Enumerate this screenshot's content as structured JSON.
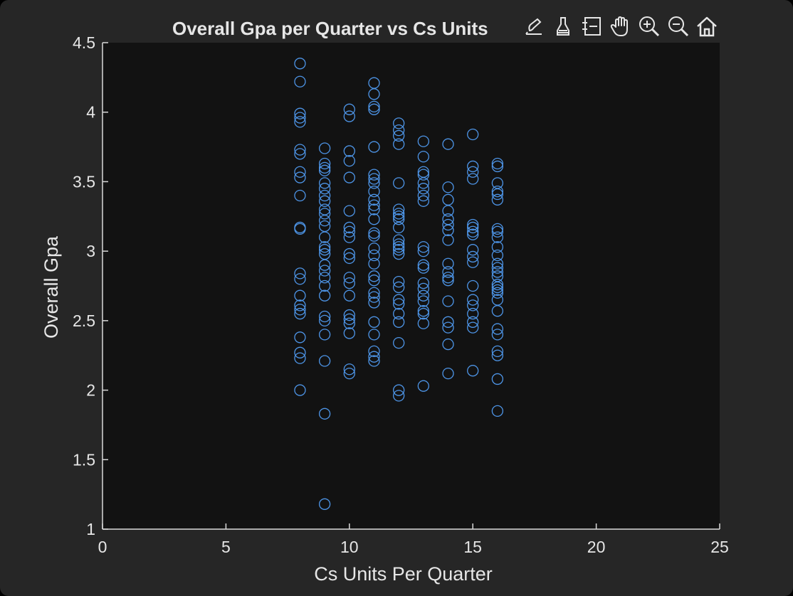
{
  "window": {
    "background": "#262626",
    "axes_background": "#121212",
    "axis_color": "#d9d9d9",
    "text_color": "#e6e6e6",
    "marker_color": "#4d94e6"
  },
  "toolbar": {
    "icons": [
      "brush-select-icon",
      "data-tips-icon",
      "legend-icon",
      "pan-icon",
      "zoom-in-icon",
      "zoom-out-icon",
      "home-icon"
    ]
  },
  "chart_data": {
    "type": "scatter",
    "title": "Overall Gpa per Quarter vs Cs Units",
    "xlabel": "Cs Units Per Quarter",
    "ylabel": "Overall Gpa",
    "xlim": [
      0,
      25
    ],
    "ylim": [
      1,
      4.5
    ],
    "xticks": [
      "0",
      "5",
      "10",
      "15",
      "20",
      "25"
    ],
    "yticks": [
      "1",
      "1.5",
      "2",
      "2.5",
      "3",
      "3.5",
      "4",
      "4.5"
    ],
    "marker": "open-circle",
    "grid": false,
    "series": [
      {
        "points": [
          [
            8,
            4.35
          ],
          [
            8,
            4.22
          ],
          [
            8,
            3.99
          ],
          [
            8,
            3.96
          ],
          [
            8,
            3.93
          ],
          [
            8,
            3.73
          ],
          [
            8,
            3.7
          ],
          [
            8,
            3.57
          ],
          [
            8,
            3.53
          ],
          [
            8,
            3.4
          ],
          [
            8,
            3.17
          ],
          [
            8,
            3.16
          ],
          [
            8,
            2.84
          ],
          [
            8,
            2.8
          ],
          [
            8,
            2.68
          ],
          [
            8,
            2.61
          ],
          [
            8,
            2.58
          ],
          [
            8,
            2.55
          ],
          [
            8,
            2.38
          ],
          [
            8,
            2.27
          ],
          [
            8,
            2.23
          ],
          [
            8,
            2.0
          ],
          [
            9,
            3.74
          ],
          [
            9,
            3.63
          ],
          [
            9,
            3.6
          ],
          [
            9,
            3.58
          ],
          [
            9,
            3.49
          ],
          [
            9,
            3.45
          ],
          [
            9,
            3.4
          ],
          [
            9,
            3.36
          ],
          [
            9,
            3.3
          ],
          [
            9,
            3.27
          ],
          [
            9,
            3.22
          ],
          [
            9,
            3.18
          ],
          [
            9,
            3.1
          ],
          [
            9,
            3.03
          ],
          [
            9,
            3.01
          ],
          [
            9,
            2.98
          ],
          [
            9,
            2.9
          ],
          [
            9,
            2.86
          ],
          [
            9,
            2.81
          ],
          [
            9,
            2.75
          ],
          [
            9,
            2.68
          ],
          [
            9,
            2.53
          ],
          [
            9,
            2.5
          ],
          [
            9,
            2.4
          ],
          [
            9,
            2.21
          ],
          [
            9,
            1.83
          ],
          [
            9,
            1.18
          ],
          [
            10,
            4.02
          ],
          [
            10,
            3.97
          ],
          [
            10,
            3.72
          ],
          [
            10,
            3.65
          ],
          [
            10,
            3.53
          ],
          [
            10,
            3.29
          ],
          [
            10,
            3.17
          ],
          [
            10,
            3.14
          ],
          [
            10,
            3.1
          ],
          [
            10,
            2.98
          ],
          [
            10,
            2.95
          ],
          [
            10,
            2.81
          ],
          [
            10,
            2.77
          ],
          [
            10,
            2.68
          ],
          [
            10,
            2.54
          ],
          [
            10,
            2.51
          ],
          [
            10,
            2.48
          ],
          [
            10,
            2.41
          ],
          [
            10,
            2.15
          ],
          [
            10,
            2.12
          ],
          [
            11,
            4.21
          ],
          [
            11,
            4.13
          ],
          [
            11,
            4.04
          ],
          [
            11,
            4.02
          ],
          [
            11,
            3.75
          ],
          [
            11,
            3.55
          ],
          [
            11,
            3.52
          ],
          [
            11,
            3.49
          ],
          [
            11,
            3.43
          ],
          [
            11,
            3.37
          ],
          [
            11,
            3.33
          ],
          [
            11,
            3.3
          ],
          [
            11,
            3.23
          ],
          [
            11,
            3.13
          ],
          [
            11,
            3.11
          ],
          [
            11,
            3.02
          ],
          [
            11,
            2.97
          ],
          [
            11,
            2.91
          ],
          [
            11,
            2.82
          ],
          [
            11,
            2.79
          ],
          [
            11,
            2.7
          ],
          [
            11,
            2.67
          ],
          [
            11,
            2.63
          ],
          [
            11,
            2.49
          ],
          [
            11,
            2.4
          ],
          [
            11,
            2.28
          ],
          [
            11,
            2.24
          ],
          [
            11,
            2.21
          ],
          [
            12,
            3.92
          ],
          [
            12,
            3.87
          ],
          [
            12,
            3.83
          ],
          [
            12,
            3.77
          ],
          [
            12,
            3.49
          ],
          [
            12,
            3.3
          ],
          [
            12,
            3.27
          ],
          [
            12,
            3.25
          ],
          [
            12,
            3.23
          ],
          [
            12,
            3.17
          ],
          [
            12,
            3.08
          ],
          [
            12,
            3.05
          ],
          [
            12,
            3.03
          ],
          [
            12,
            3.01
          ],
          [
            12,
            2.98
          ],
          [
            12,
            2.78
          ],
          [
            12,
            2.74
          ],
          [
            12,
            2.65
          ],
          [
            12,
            2.62
          ],
          [
            12,
            2.55
          ],
          [
            12,
            2.49
          ],
          [
            12,
            2.34
          ],
          [
            12,
            2.0
          ],
          [
            12,
            1.96
          ],
          [
            13,
            3.79
          ],
          [
            13,
            3.68
          ],
          [
            13,
            3.57
          ],
          [
            13,
            3.55
          ],
          [
            13,
            3.49
          ],
          [
            13,
            3.45
          ],
          [
            13,
            3.4
          ],
          [
            13,
            3.36
          ],
          [
            13,
            3.03
          ],
          [
            13,
            3.0
          ],
          [
            13,
            2.9
          ],
          [
            13,
            2.88
          ],
          [
            13,
            2.77
          ],
          [
            13,
            2.73
          ],
          [
            13,
            2.68
          ],
          [
            13,
            2.64
          ],
          [
            13,
            2.57
          ],
          [
            13,
            2.55
          ],
          [
            13,
            2.48
          ],
          [
            13,
            2.03
          ],
          [
            14,
            3.77
          ],
          [
            14,
            3.46
          ],
          [
            14,
            3.37
          ],
          [
            14,
            3.29
          ],
          [
            14,
            3.23
          ],
          [
            14,
            3.19
          ],
          [
            14,
            3.15
          ],
          [
            14,
            3.08
          ],
          [
            14,
            2.91
          ],
          [
            14,
            2.85
          ],
          [
            14,
            2.81
          ],
          [
            14,
            2.79
          ],
          [
            14,
            2.64
          ],
          [
            14,
            2.49
          ],
          [
            14,
            2.45
          ],
          [
            14,
            2.33
          ],
          [
            14,
            2.12
          ],
          [
            15,
            3.84
          ],
          [
            15,
            3.61
          ],
          [
            15,
            3.57
          ],
          [
            15,
            3.52
          ],
          [
            15,
            3.19
          ],
          [
            15,
            3.17
          ],
          [
            15,
            3.14
          ],
          [
            15,
            3.12
          ],
          [
            15,
            3.01
          ],
          [
            15,
            2.96
          ],
          [
            15,
            2.92
          ],
          [
            15,
            2.75
          ],
          [
            15,
            2.65
          ],
          [
            15,
            2.61
          ],
          [
            15,
            2.55
          ],
          [
            15,
            2.49
          ],
          [
            15,
            2.45
          ],
          [
            15,
            2.14
          ],
          [
            16,
            3.63
          ],
          [
            16,
            3.61
          ],
          [
            16,
            3.49
          ],
          [
            16,
            3.43
          ],
          [
            16,
            3.41
          ],
          [
            16,
            3.37
          ],
          [
            16,
            3.16
          ],
          [
            16,
            3.14
          ],
          [
            16,
            3.1
          ],
          [
            16,
            3.03
          ],
          [
            16,
            2.97
          ],
          [
            16,
            2.91
          ],
          [
            16,
            2.88
          ],
          [
            16,
            2.85
          ],
          [
            16,
            2.82
          ],
          [
            16,
            2.76
          ],
          [
            16,
            2.74
          ],
          [
            16,
            2.72
          ],
          [
            16,
            2.7
          ],
          [
            16,
            2.65
          ],
          [
            16,
            2.57
          ],
          [
            16,
            2.44
          ],
          [
            16,
            2.4
          ],
          [
            16,
            2.28
          ],
          [
            16,
            2.25
          ],
          [
            16,
            2.08
          ],
          [
            16,
            1.85
          ]
        ]
      }
    ]
  }
}
